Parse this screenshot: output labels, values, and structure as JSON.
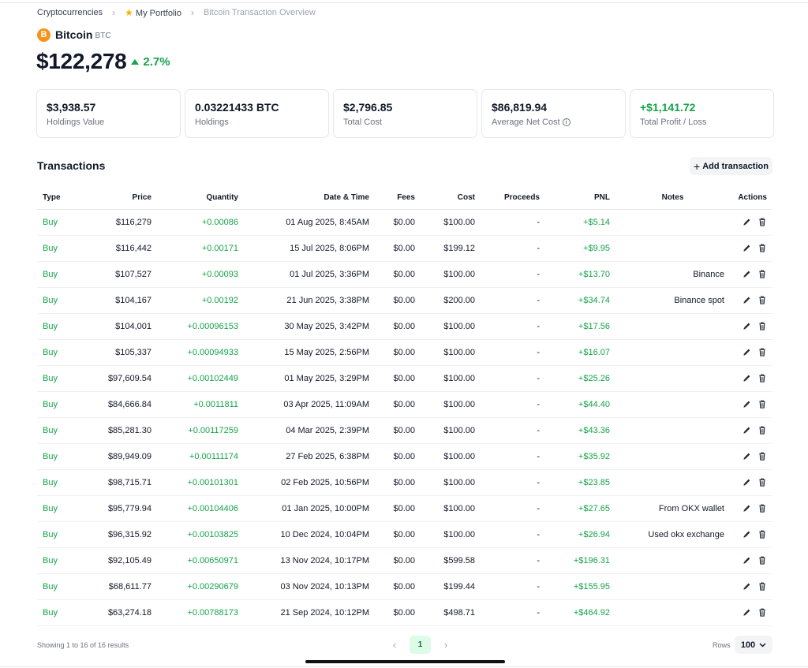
{
  "breadcrumb": {
    "items": [
      {
        "label": "Cryptocurrencies"
      },
      {
        "label": "My Portfolio"
      },
      {
        "label": "Bitcoin Transaction Overview"
      }
    ]
  },
  "coin": {
    "logo_letter": "B",
    "name": "Bitcoin",
    "symbol": "BTC",
    "price": "$122,278",
    "change": "2.7%",
    "brand_color": "#f7931a",
    "positive_color": "#16a34a"
  },
  "stats": [
    {
      "value": "$3,938.57",
      "label": "Holdings Value"
    },
    {
      "value": "0.03221433 BTC",
      "label": "Holdings"
    },
    {
      "value": "$2,796.85",
      "label": "Total Cost"
    },
    {
      "value": "$86,819.94",
      "label": "Average Net Cost"
    },
    {
      "value": "+$1,141.72",
      "label": "Total Profit / Loss"
    }
  ],
  "transactions": {
    "title": "Transactions",
    "add_label": "Add transaction",
    "columns": {
      "type": "Type",
      "price": "Price",
      "quantity": "Quantity",
      "date": "Date & Time",
      "fees": "Fees",
      "cost": "Cost",
      "proceeds": "Proceeds",
      "pnl": "PNL",
      "notes": "Notes",
      "actions": "Actions"
    },
    "rows": [
      {
        "type": "Buy",
        "price": "$116,279",
        "quantity": "+0.00086",
        "date": "01 Aug 2025, 8:45AM",
        "fees": "$0.00",
        "cost": "$100.00",
        "proceeds": "-",
        "pnl": "+$5.14",
        "notes": ""
      },
      {
        "type": "Buy",
        "price": "$116,442",
        "quantity": "+0.00171",
        "date": "15 Jul 2025, 8:06PM",
        "fees": "$0.00",
        "cost": "$199.12",
        "proceeds": "-",
        "pnl": "+$9.95",
        "notes": ""
      },
      {
        "type": "Buy",
        "price": "$107,527",
        "quantity": "+0.00093",
        "date": "01 Jul 2025, 3:36PM",
        "fees": "$0.00",
        "cost": "$100.00",
        "proceeds": "-",
        "pnl": "+$13.70",
        "notes": "Binance"
      },
      {
        "type": "Buy",
        "price": "$104,167",
        "quantity": "+0.00192",
        "date": "21 Jun 2025, 3:38PM",
        "fees": "$0.00",
        "cost": "$200.00",
        "proceeds": "-",
        "pnl": "+$34.74",
        "notes": "Binance spot"
      },
      {
        "type": "Buy",
        "price": "$104,001",
        "quantity": "+0.00096153",
        "date": "30 May 2025, 3:42PM",
        "fees": "$0.00",
        "cost": "$100.00",
        "proceeds": "-",
        "pnl": "+$17.56",
        "notes": ""
      },
      {
        "type": "Buy",
        "price": "$105,337",
        "quantity": "+0.00094933",
        "date": "15 May 2025, 2:56PM",
        "fees": "$0.00",
        "cost": "$100.00",
        "proceeds": "-",
        "pnl": "+$16.07",
        "notes": ""
      },
      {
        "type": "Buy",
        "price": "$97,609.54",
        "quantity": "+0.00102449",
        "date": "01 May 2025, 3:29PM",
        "fees": "$0.00",
        "cost": "$100.00",
        "proceeds": "-",
        "pnl": "+$25.26",
        "notes": ""
      },
      {
        "type": "Buy",
        "price": "$84,666.84",
        "quantity": "+0.0011811",
        "date": "03 Apr 2025, 11:09AM",
        "fees": "$0.00",
        "cost": "$100.00",
        "proceeds": "-",
        "pnl": "+$44.40",
        "notes": ""
      },
      {
        "type": "Buy",
        "price": "$85,281.30",
        "quantity": "+0.00117259",
        "date": "04 Mar 2025, 2:39PM",
        "fees": "$0.00",
        "cost": "$100.00",
        "proceeds": "-",
        "pnl": "+$43.36",
        "notes": ""
      },
      {
        "type": "Buy",
        "price": "$89,949.09",
        "quantity": "+0.00111174",
        "date": "27 Feb 2025, 6:38PM",
        "fees": "$0.00",
        "cost": "$100.00",
        "proceeds": "-",
        "pnl": "+$35.92",
        "notes": ""
      },
      {
        "type": "Buy",
        "price": "$98,715.71",
        "quantity": "+0.00101301",
        "date": "02 Feb 2025, 10:56PM",
        "fees": "$0.00",
        "cost": "$100.00",
        "proceeds": "-",
        "pnl": "+$23.85",
        "notes": ""
      },
      {
        "type": "Buy",
        "price": "$95,779.94",
        "quantity": "+0.00104406",
        "date": "01 Jan 2025, 10:00PM",
        "fees": "$0.00",
        "cost": "$100.00",
        "proceeds": "-",
        "pnl": "+$27.65",
        "notes": "From OKX wallet"
      },
      {
        "type": "Buy",
        "price": "$96,315.92",
        "quantity": "+0.00103825",
        "date": "10 Dec 2024, 10:04PM",
        "fees": "$0.00",
        "cost": "$100.00",
        "proceeds": "-",
        "pnl": "+$26.94",
        "notes": "Used okx exchange"
      },
      {
        "type": "Buy",
        "price": "$92,105.49",
        "quantity": "+0.00650971",
        "date": "13 Nov 2024, 10:17PM",
        "fees": "$0.00",
        "cost": "$599.58",
        "proceeds": "-",
        "pnl": "+$196.31",
        "notes": ""
      },
      {
        "type": "Buy",
        "price": "$68,611.77",
        "quantity": "+0.00290679",
        "date": "03 Nov 2024, 10:13PM",
        "fees": "$0.00",
        "cost": "$199.44",
        "proceeds": "-",
        "pnl": "+$155.95",
        "notes": ""
      },
      {
        "type": "Buy",
        "price": "$63,274.18",
        "quantity": "+0.00788173",
        "date": "21 Sep 2024, 10:12PM",
        "fees": "$0.00",
        "cost": "$498.71",
        "proceeds": "-",
        "pnl": "+$464.92",
        "notes": ""
      }
    ]
  },
  "footer": {
    "showing": "Showing 1 to 16 of 16 results",
    "current_page": "1",
    "rows_label": "Rows",
    "rows_value": "100"
  },
  "icons": {
    "breadcrumb_separator": "chevron-right-icon",
    "portfolio": "star-icon",
    "edit": "pencil-icon",
    "delete": "trash-icon"
  }
}
